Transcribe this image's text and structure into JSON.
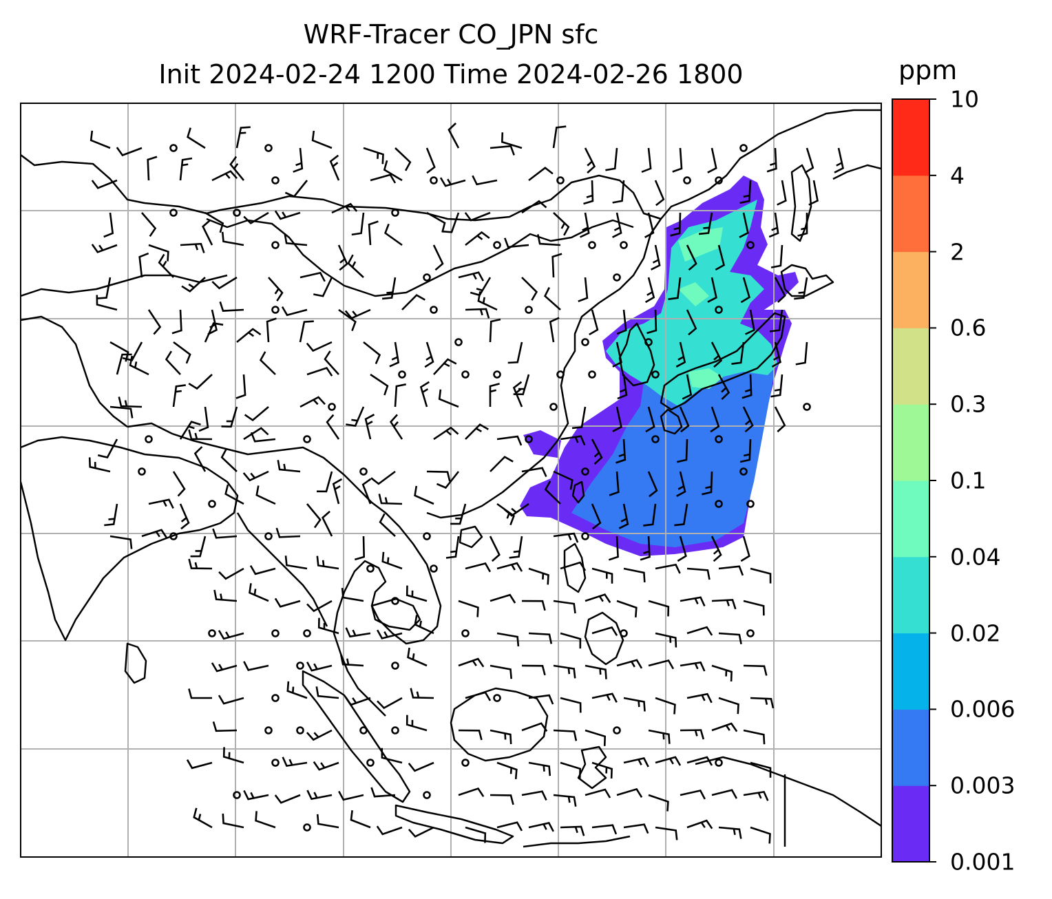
{
  "title": {
    "line1": "WRF-Tracer CO_JPN sfc",
    "line2": "Init 2024-02-24 1200 Time 2024-02-26 1800"
  },
  "colorbar": {
    "unit": "ppm",
    "levels": [
      "0.001",
      "0.003",
      "0.006",
      "0.02",
      "0.04",
      "0.1",
      "0.3",
      "0.6",
      "2",
      "4",
      "10"
    ],
    "colors": [
      "#6a2cf5",
      "#3579f3",
      "#05b3ea",
      "#35dfd1",
      "#6ffbbd",
      "#9ef895",
      "#d1e187",
      "#fcb161",
      "#ff6f3c",
      "#ff2b18"
    ]
  },
  "map": {
    "gridlines": true,
    "wind_barbs": true,
    "plume_colors": {
      "lowest": "#6a2cf5",
      "low": "#3579f3",
      "mid": "#35dfd1",
      "high": "#6ffbbd"
    },
    "grid_color": "#b0b0b0",
    "coast_color": "#000000"
  }
}
